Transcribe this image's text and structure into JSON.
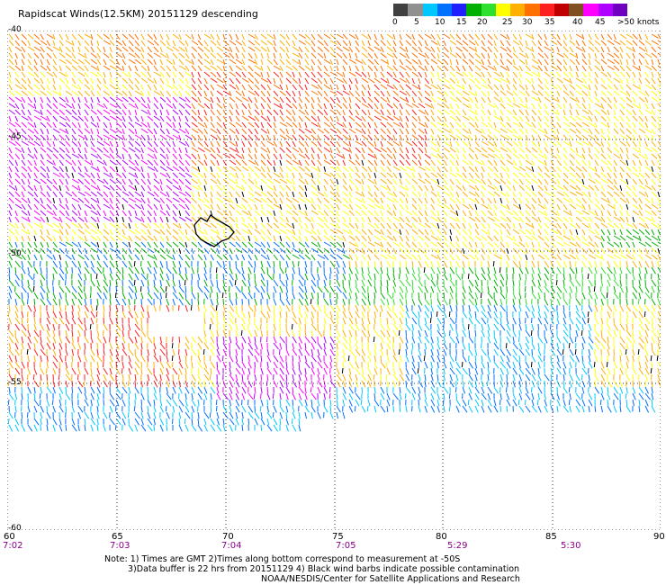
{
  "title": "Rapidscat Winds(12.5KM) 20151129 descending",
  "scale": {
    "colors": [
      "#404040",
      "#909090",
      "#00c8ff",
      "#0070ff",
      "#2020ff",
      "#00b000",
      "#30e030",
      "#ffff00",
      "#ffb000",
      "#ff7000",
      "#ff2020",
      "#c00000",
      "#805020",
      "#ff00ff",
      "#b000ff",
      "#7000c0"
    ],
    "labels": [
      "0",
      "5",
      "10",
      "15",
      "20",
      "25",
      "30",
      "35",
      "40",
      "45",
      ">50 knots"
    ]
  },
  "map": {
    "lat_labels": [
      "-40",
      "-45",
      "-50",
      "-55",
      "-60"
    ],
    "lon_labels": [
      "60",
      "65",
      "70",
      "75",
      "80",
      "85",
      "90"
    ],
    "time_labels": [
      "7:02",
      "7:03",
      "7:04",
      "7:05",
      "5:29",
      "5:30"
    ]
  },
  "notes": {
    "line1": "Note: 1) Times are GMT 2)Times along bottom correspond to measurement at -50S",
    "line2": "3)Data buffer is 22 hrs from 20151129 4) Black wind barbs indicate possible contamination",
    "line3": "NOAA/NESDIS/Center for Satellite Applications and Research"
  }
}
